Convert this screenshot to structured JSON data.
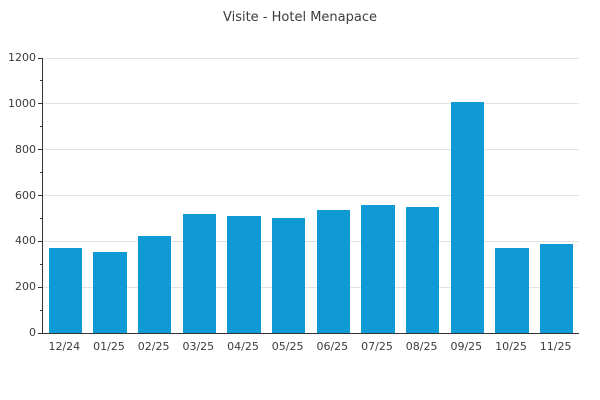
{
  "chart_data": {
    "type": "bar",
    "title": "Visite - Hotel Menapace",
    "categories": [
      "12/24",
      "01/25",
      "02/25",
      "03/25",
      "04/25",
      "05/25",
      "06/25",
      "07/25",
      "08/25",
      "09/25",
      "10/25",
      "11/25"
    ],
    "values": [
      370,
      355,
      425,
      520,
      510,
      500,
      535,
      560,
      550,
      1010,
      370,
      390
    ],
    "xlabel": "",
    "ylabel": "",
    "ylim": [
      0,
      1200
    ],
    "y_ticks": [
      0,
      200,
      400,
      600,
      800,
      1000,
      1200
    ],
    "y_minor_step": 100,
    "grid": "horizontal",
    "legend_position": "none",
    "colors": {
      "bar": "#0F9AD6",
      "grid": "#e3e3e3",
      "axis": "#333333",
      "text": "#3c3c3c",
      "background": "#ffffff"
    }
  }
}
